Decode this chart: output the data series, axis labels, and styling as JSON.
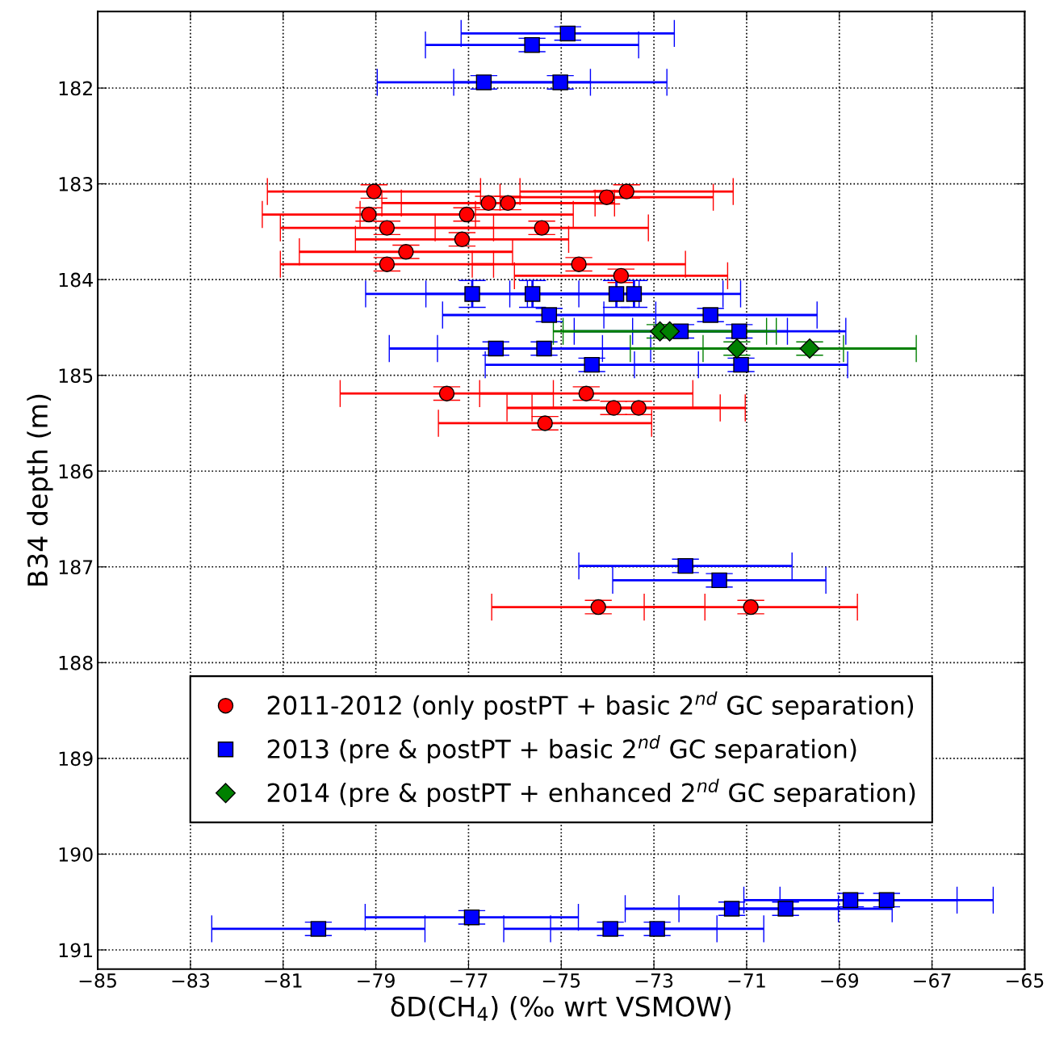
{
  "chart_data": {
    "type": "scatter",
    "xlabel": "δD(CH$_{4}$) (‰ wrt VSMOW)",
    "ylabel": "B34 depth (m)",
    "xlim": [
      -85,
      -65
    ],
    "xticks": [
      -85,
      -83,
      -81,
      -79,
      -77,
      -75,
      -73,
      -71,
      -69,
      -67,
      -65
    ],
    "ylim": [
      191.2,
      181.2
    ],
    "yticks": [
      182,
      183,
      184,
      185,
      186,
      187,
      188,
      189,
      190,
      191
    ],
    "grid": true,
    "legend": "bottom",
    "series": [
      {
        "name": "2011-2012 (only postPT + basic 2$^{nd}$ GC separation)",
        "color": "#ff0000",
        "marker": "circle",
        "x": [
          -79.04,
          -73.59,
          -74.02,
          -76.57,
          -76.15,
          -79.15,
          -77.04,
          -78.76,
          -75.42,
          -77.14,
          -78.35,
          -78.76,
          -74.62,
          -73.71,
          -77.47,
          -74.46,
          -73.87,
          -73.33,
          -75.35,
          -74.2,
          -70.91
        ],
        "values": [
          183.08,
          183.08,
          183.14,
          183.2,
          183.2,
          183.32,
          183.32,
          183.46,
          183.46,
          183.58,
          183.71,
          183.84,
          183.84,
          183.96,
          185.19,
          185.19,
          185.34,
          185.34,
          185.5,
          187.42,
          187.42
        ],
        "xerrors": [
          2.3,
          2.3,
          2.3,
          2.3,
          2.3,
          2.3,
          2.3,
          2.3,
          2.3,
          2.3,
          2.3,
          2.3,
          2.3,
          2.3,
          2.3,
          2.3,
          2.3,
          2.3,
          2.3,
          2.3,
          2.3
        ],
        "errors": [
          0.07,
          0.07,
          0.07,
          0.07,
          0.07,
          0.07,
          0.07,
          0.07,
          0.07,
          0.07,
          0.07,
          0.07,
          0.07,
          0.07,
          0.07,
          0.07,
          0.07,
          0.07,
          0.07,
          0.07,
          0.07
        ]
      },
      {
        "name": "2013 (pre & postPT + basic 2$^{nd}$ GC separation)",
        "color": "#0000ff",
        "marker": "square",
        "x": [
          -74.86,
          -75.63,
          -76.67,
          -75.02,
          -76.92,
          -75.62,
          -73.81,
          -73.43,
          -75.26,
          -71.78,
          -72.42,
          -71.16,
          -76.41,
          -75.37,
          -74.34,
          -71.12,
          -72.32,
          -71.59,
          -80.24,
          -76.93,
          -73.94,
          -72.93,
          -71.32,
          -70.16,
          -68.76,
          -67.98
        ],
        "values": [
          181.43,
          181.55,
          181.94,
          181.94,
          184.15,
          184.15,
          184.15,
          184.15,
          184.37,
          184.37,
          184.54,
          184.54,
          184.72,
          184.72,
          184.89,
          184.89,
          186.99,
          187.14,
          190.78,
          190.66,
          190.78,
          190.78,
          190.57,
          190.57,
          190.48,
          190.48
        ],
        "xerrors": [
          2.3,
          2.3,
          2.3,
          2.3,
          2.3,
          2.3,
          2.3,
          2.3,
          2.3,
          2.3,
          2.3,
          2.3,
          2.3,
          2.3,
          2.3,
          2.3,
          2.3,
          2.3,
          2.3,
          2.3,
          2.3,
          2.3,
          2.3,
          2.3,
          2.3,
          2.3
        ],
        "errors": [
          0.07,
          0.07,
          0.07,
          0.07,
          0.14,
          0.14,
          0.14,
          0.14,
          0.07,
          0.07,
          0.07,
          0.07,
          0.07,
          0.07,
          0.07,
          0.07,
          0.07,
          0.07,
          0.07,
          0.07,
          0.07,
          0.07,
          0.07,
          0.07,
          0.07,
          0.07
        ]
      },
      {
        "name": "2014 (pre & postPT + enhanced 2$^{nd}$ GC separation)",
        "color": "#008000",
        "marker": "diamond",
        "x": [
          -72.87,
          -72.66,
          -71.21,
          -69.64
        ],
        "values": [
          184.54,
          184.54,
          184.72,
          184.72
        ],
        "xerrors": [
          2.3,
          2.3,
          2.3,
          2.3
        ],
        "errors": [
          0.07,
          0.07,
          0.07,
          0.07
        ]
      }
    ]
  }
}
